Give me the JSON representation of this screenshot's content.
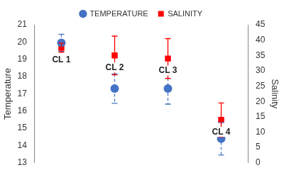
{
  "chart_data": {
    "type": "scatter",
    "categories": [
      "CL 1",
      "CL 2",
      "CL 3",
      "CL 4"
    ],
    "series": [
      {
        "name": "TEMPERATURE",
        "color": "#4472c4",
        "marker": "circle",
        "line_style": "dashed",
        "values": [
          19.95,
          17.3,
          17.3,
          14.4
        ],
        "errors": [
          0.5,
          0.85,
          0.9,
          0.95
        ]
      },
      {
        "name": "SALINITY",
        "color": "#ff0000",
        "marker": "square",
        "line_style": "solid",
        "axis": "y2",
        "values": [
          37.5,
          35,
          34,
          14
        ],
        "errors": [
          1.5,
          6.3,
          6.5,
          5.5
        ]
      }
    ],
    "y_label": "Temperature",
    "y2_label": "Salinity",
    "ylim": [
      13,
      21
    ],
    "yticks": [
      13,
      14,
      15,
      16,
      17,
      18,
      19,
      20,
      21
    ],
    "y2lim": [
      0,
      45
    ],
    "y2ticks": [
      0,
      5,
      10,
      15,
      20,
      25,
      30,
      35,
      40,
      45
    ],
    "grid": false,
    "legend": "top"
  }
}
